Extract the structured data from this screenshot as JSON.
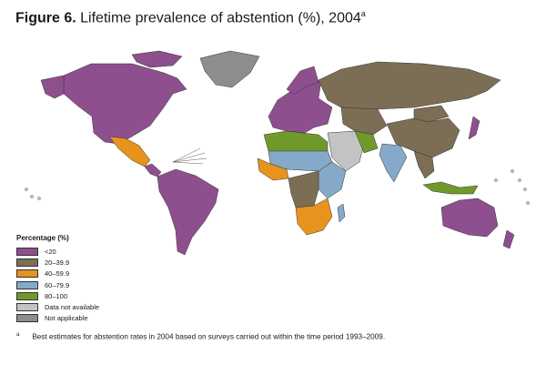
{
  "figure": {
    "label": "Figure 6.",
    "title": "Lifetime prevalence of abstention (%), 2004",
    "footnote_mark": "a"
  },
  "legend": {
    "heading": "Percentage (%)",
    "items": [
      {
        "label": "<20",
        "color": "#8e4f8f"
      },
      {
        "label": "20–39.9",
        "color": "#7c6e55"
      },
      {
        "label": "40–59.9",
        "color": "#e8931d"
      },
      {
        "label": "60–79.9",
        "color": "#86a9c9"
      },
      {
        "label": "80–100",
        "color": "#6f9a2a"
      },
      {
        "label": "Data not available",
        "color": "#c3c3c3"
      },
      {
        "label": "Not applicable",
        "color": "#8d8d8d"
      }
    ]
  },
  "footnote": {
    "mark": "a",
    "text": "Best estimates for abstention rates in 2004 based on surveys carried out within the time period 1993–2009."
  },
  "map": {
    "regions": [
      {
        "id": "north-america",
        "category": "<20"
      },
      {
        "id": "greenland",
        "category": "Not applicable"
      },
      {
        "id": "mexico",
        "category": "40–59.9"
      },
      {
        "id": "central-america",
        "category": "<20"
      },
      {
        "id": "south-america",
        "category": "<20"
      },
      {
        "id": "europe",
        "category": "<20"
      },
      {
        "id": "russia",
        "category": "20–39.9"
      },
      {
        "id": "central-asia",
        "category": "20–39.9"
      },
      {
        "id": "china",
        "category": "20–39.9"
      },
      {
        "id": "mongolia",
        "category": "20–39.9"
      },
      {
        "id": "middle-east",
        "category": "Data not available"
      },
      {
        "id": "iran",
        "category": "80–100"
      },
      {
        "id": "india",
        "category": "60–79.9"
      },
      {
        "id": "south-east-asia",
        "category": "20–39.9"
      },
      {
        "id": "indonesia",
        "category": "80–100"
      },
      {
        "id": "north-africa",
        "category": "80–100"
      },
      {
        "id": "west-africa",
        "category": "40–59.9"
      },
      {
        "id": "sahel",
        "category": "60–79.9"
      },
      {
        "id": "east-africa",
        "category": "60–79.9"
      },
      {
        "id": "central-africa",
        "category": "20–39.9"
      },
      {
        "id": "southern-africa",
        "category": "40–59.9"
      },
      {
        "id": "madagascar",
        "category": "60–79.9"
      },
      {
        "id": "australia",
        "category": "<20"
      },
      {
        "id": "new-zealand",
        "category": "<20"
      },
      {
        "id": "japan",
        "category": "<20"
      }
    ]
  }
}
